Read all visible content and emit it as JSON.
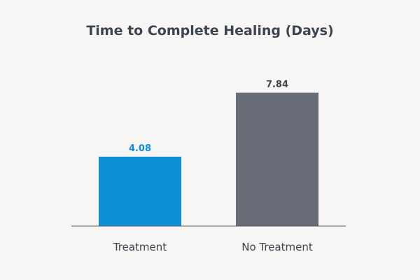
{
  "chart_data": {
    "type": "bar",
    "title": "Time to Complete Healing (Days)",
    "categories": [
      "Treatment",
      "No Treatment"
    ],
    "values": [
      4.08,
      7.84
    ],
    "value_labels": [
      "4.08",
      "7.84"
    ],
    "colors": [
      "#0f8fd8",
      "#676c77"
    ],
    "label_colors": [
      "#0f8fd8",
      "#3d4451"
    ],
    "xlabel": "",
    "ylabel": "",
    "ylim": [
      0,
      10
    ],
    "grid": false,
    "legend": "none"
  }
}
